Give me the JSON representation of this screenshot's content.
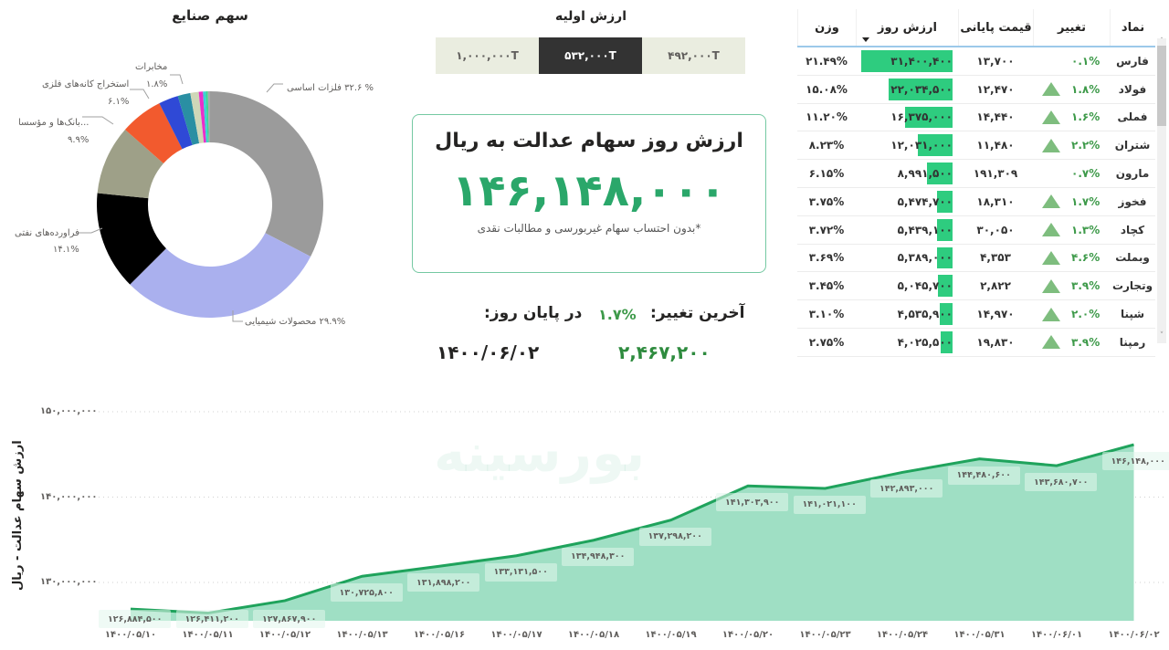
{
  "donut": {
    "title": "سهم صنایع",
    "labels": {
      "metals": "% ۳۲.۶ فلزات اساسی",
      "chemicals": "۲۹.۹% محصولات شیمیایی",
      "oil": "فراورده‌های نفتی",
      "oil_pct": "۱۴.۱%",
      "banks": "...بانک‌ها و مؤسسا",
      "banks_pct": "۹.۹%",
      "mining": "استخراج کانه‌های فلزی",
      "mining_pct": "۶.۱%",
      "telecom": "مخابرات",
      "telecom_pct": "۱.۸%"
    }
  },
  "initial_value": {
    "title": "ارزش اولیه",
    "options": [
      "۱,۰۰۰,۰۰۰T",
      "۵۳۲,۰۰۰T",
      "۴۹۲,۰۰۰T"
    ],
    "selected_index": 1
  },
  "kpi": {
    "title": "ارزش روز سهام عدالت به ریال",
    "value": "۱۴۶,۱۴۸,۰۰۰",
    "note": "*بدون احتساب سهام غیربورسی و مطالبات نقدی",
    "last_change_label": "آخرین تغییر:",
    "last_change_pct": "۱.۷%",
    "end_of_day_label": "در پایان روز:",
    "change_amount": "۲,۴۶۷,۲۰۰",
    "date": "۱۴۰۰/۰۶/۰۲"
  },
  "table": {
    "headers": {
      "symbol": "نماد",
      "change": "تغییر",
      "close": "قیمت پایانی",
      "value": "ارزش روز",
      "weight": "وزن"
    },
    "rows": [
      {
        "symbol": "فارس",
        "change": "۰.۱%",
        "up": false,
        "close": "۱۳,۷۰۰",
        "value": "۳۱,۴۰۰,۴۰۰",
        "bar": 100,
        "weight": "۲۱.۴۹%"
      },
      {
        "symbol": "فولاد",
        "change": "۱.۸%",
        "up": true,
        "close": "۱۲,۴۷۰",
        "value": "۲۲,۰۳۴,۵۰۰",
        "bar": 70,
        "weight": "۱۵.۰۸%"
      },
      {
        "symbol": "فملی",
        "change": "۱.۶%",
        "up": true,
        "close": "۱۴,۴۴۰",
        "value": "۱۶,۳۷۵,۰۰۰",
        "bar": 52,
        "weight": "۱۱.۲۰%"
      },
      {
        "symbol": "شتران",
        "change": "۲.۲%",
        "up": true,
        "close": "۱۱,۴۸۰",
        "value": "۱۲,۰۳۱,۰۰۰",
        "bar": 38,
        "weight": "۸.۲۳%"
      },
      {
        "symbol": "مارون",
        "change": "۰.۷%",
        "up": false,
        "close": "۱۹۱,۳۰۹",
        "value": "۸,۹۹۱,۵۰۰",
        "bar": 28,
        "weight": "۶.۱۵%"
      },
      {
        "symbol": "فخوز",
        "change": "۱.۷%",
        "up": true,
        "close": "۱۸,۳۱۰",
        "value": "۵,۴۷۴,۷۰۰",
        "bar": 17,
        "weight": "۳.۷۵%"
      },
      {
        "symbol": "کچاد",
        "change": "۱.۳%",
        "up": true,
        "close": "۳۰,۰۵۰",
        "value": "۵,۴۳۹,۱۰۰",
        "bar": 17,
        "weight": "۳.۷۲%"
      },
      {
        "symbol": "وبملت",
        "change": "۴.۶%",
        "up": true,
        "close": "۴,۳۵۳",
        "value": "۵,۳۸۹,۰۰۰",
        "bar": 17,
        "weight": "۳.۶۹%"
      },
      {
        "symbol": "وتجارت",
        "change": "۳.۹%",
        "up": true,
        "close": "۲,۸۲۲",
        "value": "۵,۰۴۵,۷۰۰",
        "bar": 16,
        "weight": "۳.۴۵%"
      },
      {
        "symbol": "شپنا",
        "change": "۲.۰%",
        "up": true,
        "close": "۱۴,۹۷۰",
        "value": "۴,۵۳۵,۹۰۰",
        "bar": 14,
        "weight": "۳.۱۰%"
      },
      {
        "symbol": "رمپنا",
        "change": "۳.۹%",
        "up": true,
        "close": "۱۹,۸۳۰",
        "value": "۴,۰۲۵,۵۰۰",
        "bar": 13,
        "weight": "۲.۷۵%"
      }
    ]
  },
  "area": {
    "y_title": "ارزش سهام عدالت - ریال",
    "y_ticks": [
      "۱۵۰,۰۰۰,۰۰۰",
      "۱۴۰,۰۰۰,۰۰۰",
      "۱۳۰,۰۰۰,۰۰۰"
    ],
    "x_labels": [
      "۱۴۰۰/۰۵/۱۰",
      "۱۴۰۰/۰۵/۱۱",
      "۱۴۰۰/۰۵/۱۲",
      "۱۴۰۰/۰۵/۱۳",
      "۱۴۰۰/۰۵/۱۶",
      "۱۴۰۰/۰۵/۱۷",
      "۱۴۰۰/۰۵/۱۸",
      "۱۴۰۰/۰۵/۱۹",
      "۱۴۰۰/۰۵/۲۰",
      "۱۴۰۰/۰۵/۲۳",
      "۱۴۰۰/۰۵/۲۴",
      "۱۴۰۰/۰۵/۳۱",
      "۱۴۰۰/۰۶/۰۱",
      "۱۴۰۰/۰۶/۰۲"
    ],
    "data_labels": [
      "۱۲۶,۸۸۴,۵۰۰",
      "۱۲۶,۴۱۱,۲۰۰",
      "۱۲۷,۸۶۷,۹۰۰",
      "۱۳۰,۷۲۵,۸۰۰",
      "۱۳۱,۸۹۸,۲۰۰",
      "۱۳۳,۱۳۱,۵۰۰",
      "۱۳۴,۹۴۸,۳۰۰",
      "۱۳۷,۲۹۸,۲۰۰",
      "۱۴۱,۳۰۳,۹۰۰",
      "۱۴۱,۰۲۱,۱۰۰",
      "۱۴۲,۸۹۳,۰۰۰",
      "۱۴۴,۴۸۰,۶۰۰",
      "۱۴۳,۶۸۰,۷۰۰",
      "۱۴۶,۱۴۸,۰۰۰"
    ],
    "watermark": "بورسینه"
  },
  "chart_data": [
    {
      "type": "pie",
      "title": "سهم صنایع",
      "categories": [
        "فلزات اساسی",
        "محصولات شیمیایی",
        "فراورده‌های نفتی",
        "بانک‌ها و مؤسسات اعتباری",
        "استخراج کانه‌های فلزی",
        "other-blue",
        "مخابرات",
        "other-beige",
        "other-pink",
        "other-cyan",
        "other-green",
        "other-grey"
      ],
      "values": [
        32.6,
        29.9,
        14.1,
        9.9,
        6.1,
        2.8,
        1.8,
        1.2,
        0.6,
        0.4,
        0.3,
        0.3
      ],
      "colors": [
        "#9b9b9b",
        "#aab0ee",
        "#000000",
        "#9ea088",
        "#f25a2e",
        "#2f49d6",
        "#2a8fa3",
        "#cfd7b8",
        "#ea2fc9",
        "#39d2d7",
        "#3fd68f",
        "#a9a9a9"
      ],
      "hole": 0.55
    },
    {
      "type": "area",
      "title": "",
      "xlabel": "",
      "ylabel": "ارزش سهام عدالت - ریال",
      "x": [
        "1400/05/10",
        "1400/05/11",
        "1400/05/12",
        "1400/05/13",
        "1400/05/16",
        "1400/05/17",
        "1400/05/18",
        "1400/05/19",
        "1400/05/20",
        "1400/05/23",
        "1400/05/24",
        "1400/05/31",
        "1400/06/01",
        "1400/06/02"
      ],
      "values": [
        126884500,
        126411200,
        127867900,
        130725800,
        131898200,
        133131500,
        134948300,
        137298200,
        141303900,
        141021100,
        142893000,
        144480600,
        143680700,
        146148000
      ],
      "ylim": [
        125000000,
        150000000
      ],
      "y_ticks": [
        130000000,
        140000000,
        150000000
      ],
      "grid": true,
      "legend": "none"
    }
  ]
}
